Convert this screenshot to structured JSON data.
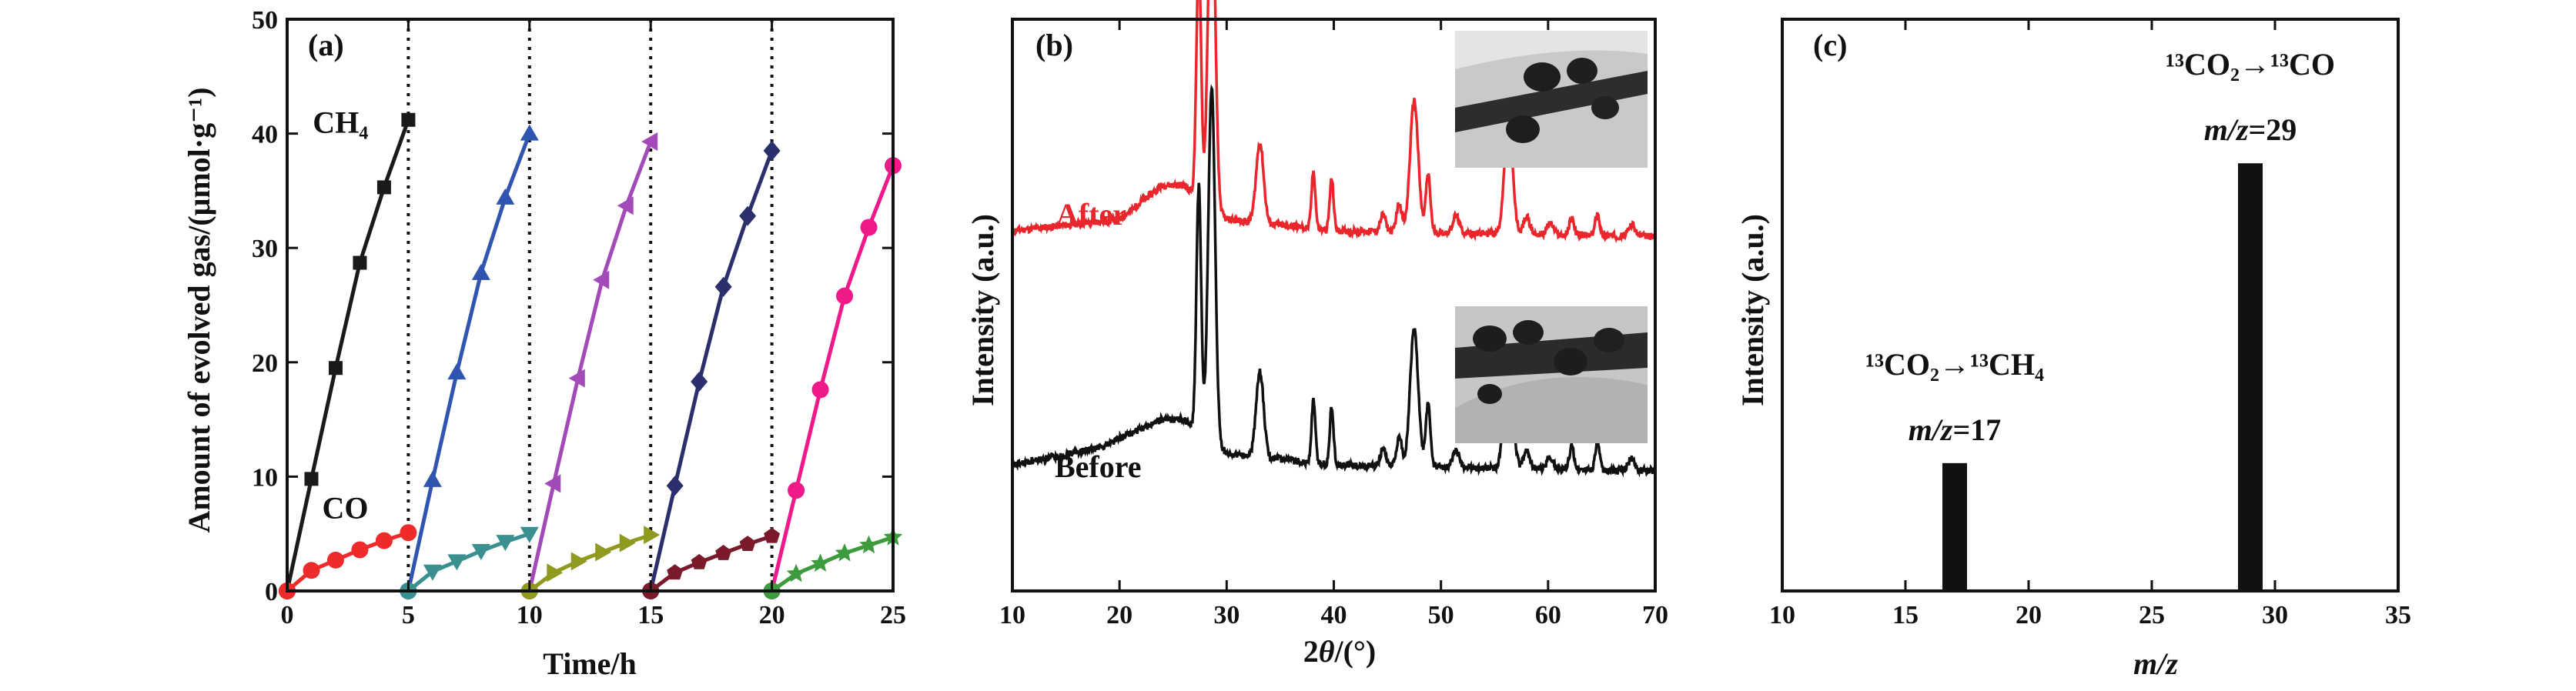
{
  "chart_data": [
    {
      "type": "line",
      "panel_label": "(a)",
      "xlabel": "Time/h",
      "ylabel": "Amount of evolved gas/(μmol·g⁻¹)",
      "xlim": [
        0,
        25
      ],
      "ylim": [
        0,
        50
      ],
      "xticks": [
        0,
        5,
        10,
        15,
        20,
        25
      ],
      "yticks": [
        0,
        10,
        20,
        30,
        40,
        50
      ],
      "cycle_boundaries": [
        5,
        10,
        15,
        20
      ],
      "annotations": [
        {
          "text": "CH₄",
          "x": 2.2,
          "y": 41
        },
        {
          "text": "CO",
          "x": 2.4,
          "y": 7.3
        }
      ],
      "series": [
        {
          "gas": "CH4",
          "cycle": 1,
          "color": "#1a1a1a",
          "marker": "square",
          "x": [
            0,
            1,
            2,
            3,
            4,
            5
          ],
          "y": [
            0,
            9.8,
            19.5,
            28.7,
            35.3,
            41.2
          ]
        },
        {
          "gas": "CH4",
          "cycle": 2,
          "color": "#2f55b0",
          "marker": "triangle-up",
          "x": [
            5,
            6,
            7,
            8,
            9,
            10
          ],
          "y": [
            0,
            9.7,
            19.1,
            27.8,
            34.4,
            40.0
          ]
        },
        {
          "gas": "CH4",
          "cycle": 3,
          "color": "#a24ab8",
          "marker": "triangle-left",
          "x": [
            10,
            11,
            12,
            13,
            14,
            15
          ],
          "y": [
            0,
            9.4,
            18.6,
            27.2,
            33.7,
            39.3
          ]
        },
        {
          "gas": "CH4",
          "cycle": 4,
          "color": "#2b2f6b",
          "marker": "diamond",
          "x": [
            15,
            16,
            17,
            18,
            19,
            20
          ],
          "y": [
            0,
            9.2,
            18.3,
            26.6,
            32.8,
            38.5
          ]
        },
        {
          "gas": "CH4",
          "cycle": 5,
          "color": "#f0198a",
          "marker": "circle",
          "x": [
            20,
            21,
            22,
            23,
            24,
            25
          ],
          "y": [
            0,
            8.8,
            17.6,
            25.8,
            31.8,
            37.2
          ]
        },
        {
          "gas": "CO",
          "cycle": 1,
          "color": "#ee2a2a",
          "marker": "circle",
          "x": [
            0,
            1,
            2,
            3,
            4,
            5
          ],
          "y": [
            0,
            1.8,
            2.7,
            3.6,
            4.4,
            5.1
          ]
        },
        {
          "gas": "CO",
          "cycle": 2,
          "color": "#3a8f8f",
          "marker": "triangle-down",
          "x": [
            5,
            6,
            7,
            8,
            9,
            10
          ],
          "y": [
            0,
            1.7,
            2.6,
            3.5,
            4.3,
            5.0
          ]
        },
        {
          "gas": "CO",
          "cycle": 3,
          "color": "#8f9a1f",
          "marker": "triangle-right",
          "x": [
            10,
            11,
            12,
            13,
            14,
            15
          ],
          "y": [
            0,
            1.6,
            2.6,
            3.4,
            4.2,
            4.9
          ]
        },
        {
          "gas": "CO",
          "cycle": 4,
          "color": "#7a1a2a",
          "marker": "pentagon",
          "x": [
            15,
            16,
            17,
            18,
            19,
            20
          ],
          "y": [
            0,
            1.6,
            2.5,
            3.3,
            4.1,
            4.8
          ]
        },
        {
          "gas": "CO",
          "cycle": 5,
          "color": "#3d9a3d",
          "marker": "star",
          "x": [
            20,
            21,
            22,
            23,
            24,
            25
          ],
          "y": [
            0,
            1.5,
            2.4,
            3.3,
            4.0,
            4.7
          ]
        }
      ]
    },
    {
      "type": "line",
      "panel_label": "(b)",
      "xlabel": "2θ/(°)",
      "ylabel": "Intensity (a.u.)",
      "xlim": [
        10,
        70
      ],
      "xticks": [
        10,
        20,
        30,
        40,
        50,
        60,
        70
      ],
      "yticks_shown": false,
      "series": [
        {
          "name": "After",
          "color": "#e8262b",
          "baseline": 0.63,
          "background": [
            [
              10,
              0
            ],
            [
              20,
              0.02
            ],
            [
              24,
              0.08
            ],
            [
              26,
              0.08
            ],
            [
              30,
              0.02
            ],
            [
              40,
              0
            ],
            [
              70,
              -0.01
            ]
          ],
          "peaks": [
            [
              27.4,
              0.42,
              0.22
            ],
            [
              28.6,
              0.62,
              0.32
            ],
            [
              33.1,
              0.14,
              0.35
            ],
            [
              38.1,
              0.1,
              0.18
            ],
            [
              39.8,
              0.09,
              0.18
            ],
            [
              44.6,
              0.03,
              0.25
            ],
            [
              46.1,
              0.05,
              0.25
            ],
            [
              47.5,
              0.23,
              0.38
            ],
            [
              48.8,
              0.1,
              0.22
            ],
            [
              51.4,
              0.03,
              0.3
            ],
            [
              56.3,
              0.2,
              0.38
            ],
            [
              58.0,
              0.03,
              0.3
            ],
            [
              60.2,
              0.02,
              0.3
            ],
            [
              62.2,
              0.03,
              0.22
            ],
            [
              64.6,
              0.04,
              0.2
            ],
            [
              67.8,
              0.02,
              0.3
            ]
          ]
        },
        {
          "name": "Before",
          "color": "#111111",
          "baseline": 0.22,
          "background": [
            [
              10,
              0
            ],
            [
              18,
              0.03
            ],
            [
              24,
              0.08
            ],
            [
              26,
              0.08
            ],
            [
              30,
              0.02
            ],
            [
              40,
              0
            ],
            [
              70,
              -0.01
            ]
          ],
          "peaks": [
            [
              27.4,
              0.43,
              0.22
            ],
            [
              28.6,
              0.62,
              0.32
            ],
            [
              33.1,
              0.15,
              0.35
            ],
            [
              38.1,
              0.11,
              0.18
            ],
            [
              39.8,
              0.1,
              0.18
            ],
            [
              44.6,
              0.03,
              0.25
            ],
            [
              46.1,
              0.05,
              0.25
            ],
            [
              47.5,
              0.24,
              0.38
            ],
            [
              48.8,
              0.11,
              0.22
            ],
            [
              51.4,
              0.03,
              0.3
            ],
            [
              56.3,
              0.22,
              0.38
            ],
            [
              58.0,
              0.03,
              0.3
            ],
            [
              60.2,
              0.02,
              0.3
            ],
            [
              62.2,
              0.04,
              0.22
            ],
            [
              64.6,
              0.05,
              0.2
            ],
            [
              67.8,
              0.02,
              0.3
            ]
          ]
        }
      ],
      "insets": [
        "after-tem-image",
        "before-tem-image"
      ]
    },
    {
      "type": "bar",
      "panel_label": "(c)",
      "xlabel": "m/z",
      "ylabel": "Intensity (a.u.)",
      "xlim": [
        10,
        35
      ],
      "xticks": [
        10,
        15,
        20,
        25,
        30,
        35
      ],
      "yticks_shown": false,
      "bar_color": "#111111",
      "bars": [
        {
          "mz": 17,
          "intensity": 0.29,
          "mz_label": "m/z=17",
          "reaction_label": "¹³CO₂→¹³CH₄"
        },
        {
          "mz": 29,
          "intensity": 0.97,
          "mz_label": "m/z=29",
          "reaction_label": "¹³CO₂→¹³CO"
        }
      ]
    }
  ]
}
